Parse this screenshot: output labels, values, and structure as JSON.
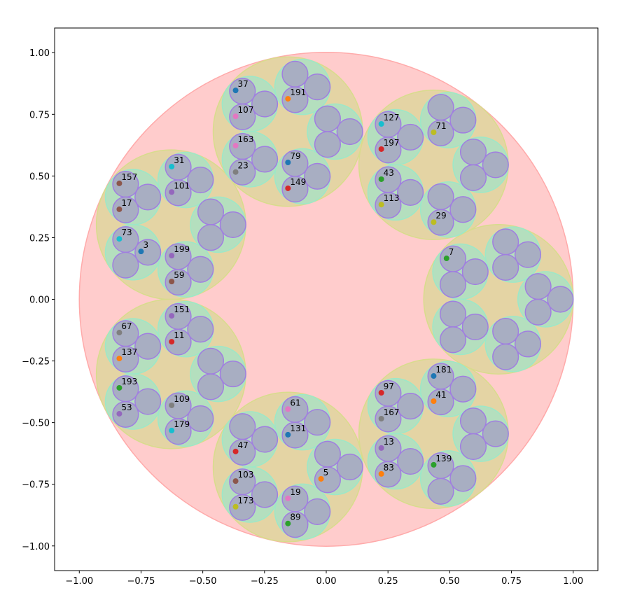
{
  "chart_data": {
    "type": "scatter",
    "title": "",
    "xlabel": "",
    "ylabel": "",
    "xlim": [
      -1.1,
      1.1
    ],
    "ylim": [
      -1.1,
      1.1
    ],
    "grid": false,
    "xticks": [
      "−1.00",
      "−0.75",
      "−0.50",
      "−0.25",
      "0.00",
      "0.25",
      "0.50",
      "0.75",
      "1.00"
    ],
    "yticks": [
      "−1.00",
      "−0.75",
      "−0.50",
      "−0.25",
      "0.00",
      "0.25",
      "0.50",
      "0.75",
      "1.00"
    ],
    "xtick_values": [
      -1,
      -0.75,
      -0.5,
      -0.25,
      0,
      0.25,
      0.5,
      0.75,
      1
    ],
    "ytick_values": [
      -1,
      -0.75,
      -0.5,
      -0.25,
      0,
      0.25,
      0.5,
      0.75,
      1
    ],
    "circle_packing": {
      "outer_circle": {
        "center": [
          0,
          0
        ],
        "radius": 1,
        "fill": "#ffcccc",
        "edge": "#ffaaaa"
      },
      "levels": [
        {
          "count": 7,
          "fill": "#e4d4a4",
          "edge": "#d8dc8c"
        },
        {
          "count": 5,
          "fill": "#b4dfbe",
          "edge": "#9ce8c8"
        },
        {
          "count": 3,
          "fill": "#a8aec2",
          "edge": "#a07ee0"
        }
      ]
    },
    "points": [
      {
        "label": "37",
        "x": -0.367,
        "y": 0.847,
        "color": "#1f77b4"
      },
      {
        "label": "191",
        "x": -0.155,
        "y": 0.813,
        "color": "#ff7f0e"
      },
      {
        "label": "107",
        "x": -0.367,
        "y": 0.742,
        "color": "#e377c2"
      },
      {
        "label": "163",
        "x": -0.367,
        "y": 0.623,
        "color": "#e377c2"
      },
      {
        "label": "23",
        "x": -0.367,
        "y": 0.516,
        "color": "#7f7f7f"
      },
      {
        "label": "79",
        "x": -0.155,
        "y": 0.555,
        "color": "#1f77b4"
      },
      {
        "label": "149",
        "x": -0.155,
        "y": 0.45,
        "color": "#d62728"
      },
      {
        "label": "127",
        "x": 0.223,
        "y": 0.711,
        "color": "#17becf"
      },
      {
        "label": "197",
        "x": 0.223,
        "y": 0.609,
        "color": "#d62728"
      },
      {
        "label": "71",
        "x": 0.435,
        "y": 0.677,
        "color": "#bcbd22"
      },
      {
        "label": "43",
        "x": 0.223,
        "y": 0.487,
        "color": "#2ca02c"
      },
      {
        "label": "113",
        "x": 0.223,
        "y": 0.384,
        "color": "#bcbd22"
      },
      {
        "label": "29",
        "x": 0.435,
        "y": 0.313,
        "color": "#bcbd22"
      },
      {
        "label": "157",
        "x": -0.838,
        "y": 0.47,
        "color": "#8c564b"
      },
      {
        "label": "31",
        "x": -0.626,
        "y": 0.538,
        "color": "#17becf"
      },
      {
        "label": "101",
        "x": -0.626,
        "y": 0.435,
        "color": "#9467bd"
      },
      {
        "label": "17",
        "x": -0.838,
        "y": 0.365,
        "color": "#8c564b"
      },
      {
        "label": "73",
        "x": -0.838,
        "y": 0.245,
        "color": "#17becf"
      },
      {
        "label": "3",
        "x": -0.75,
        "y": 0.194,
        "color": "#1f77b4"
      },
      {
        "label": "199",
        "x": -0.626,
        "y": 0.177,
        "color": "#9467bd"
      },
      {
        "label": "59",
        "x": -0.626,
        "y": 0.072,
        "color": "#8c564b"
      },
      {
        "label": "7",
        "x": 0.487,
        "y": 0.166,
        "color": "#2ca02c"
      },
      {
        "label": "151",
        "x": -0.626,
        "y": -0.067,
        "color": "#9467bd"
      },
      {
        "label": "67",
        "x": -0.838,
        "y": -0.135,
        "color": "#7f7f7f"
      },
      {
        "label": "11",
        "x": -0.626,
        "y": -0.172,
        "color": "#d62728"
      },
      {
        "label": "137",
        "x": -0.838,
        "y": -0.24,
        "color": "#ff7f0e"
      },
      {
        "label": "193",
        "x": -0.838,
        "y": -0.359,
        "color": "#2ca02c"
      },
      {
        "label": "109",
        "x": -0.626,
        "y": -0.43,
        "color": "#7f7f7f"
      },
      {
        "label": "53",
        "x": -0.838,
        "y": -0.464,
        "color": "#9467bd"
      },
      {
        "label": "179",
        "x": -0.626,
        "y": -0.532,
        "color": "#17becf"
      },
      {
        "label": "61",
        "x": -0.155,
        "y": -0.445,
        "color": "#e377c2"
      },
      {
        "label": "131",
        "x": -0.155,
        "y": -0.549,
        "color": "#1f77b4"
      },
      {
        "label": "47",
        "x": -0.367,
        "y": -0.617,
        "color": "#d62728"
      },
      {
        "label": "5",
        "x": -0.021,
        "y": -0.728,
        "color": "#ff7f0e"
      },
      {
        "label": "103",
        "x": -0.367,
        "y": -0.737,
        "color": "#8c564b"
      },
      {
        "label": "173",
        "x": -0.367,
        "y": -0.841,
        "color": "#bcbd22"
      },
      {
        "label": "19",
        "x": -0.155,
        "y": -0.807,
        "color": "#e377c2"
      },
      {
        "label": "89",
        "x": -0.155,
        "y": -0.909,
        "color": "#2ca02c"
      },
      {
        "label": "181",
        "x": 0.435,
        "y": -0.311,
        "color": "#1f77b4"
      },
      {
        "label": "97",
        "x": 0.223,
        "y": -0.379,
        "color": "#d62728"
      },
      {
        "label": "41",
        "x": 0.435,
        "y": -0.413,
        "color": "#ff7f0e"
      },
      {
        "label": "167",
        "x": 0.223,
        "y": -0.484,
        "color": "#7f7f7f"
      },
      {
        "label": "13",
        "x": 0.223,
        "y": -0.603,
        "color": "#9467bd"
      },
      {
        "label": "139",
        "x": 0.435,
        "y": -0.671,
        "color": "#2ca02c"
      },
      {
        "label": "83",
        "x": 0.223,
        "y": -0.708,
        "color": "#ff7f0e"
      }
    ]
  }
}
